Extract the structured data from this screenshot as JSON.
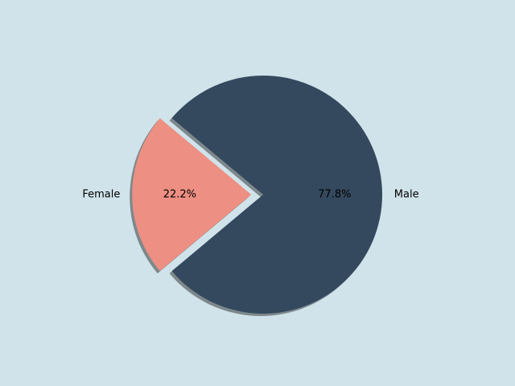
{
  "chart_data": {
    "type": "pie",
    "categories": [
      "Male",
      "Female"
    ],
    "values": [
      77.8,
      22.2
    ],
    "value_labels": [
      "77.8%",
      "22.2%"
    ],
    "colors": [
      "#34495e",
      "#ed8f82"
    ],
    "explode": [
      0,
      0.1
    ],
    "shadow": true
  }
}
